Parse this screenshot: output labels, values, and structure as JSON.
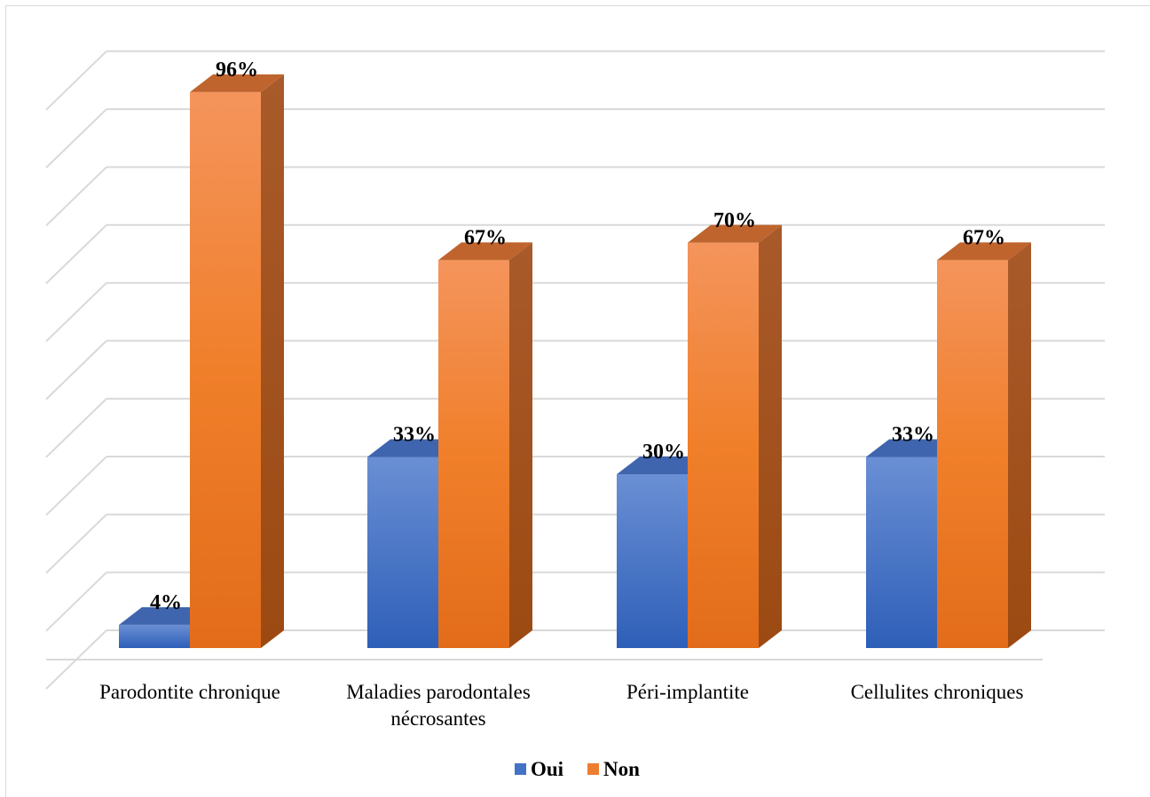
{
  "chart_data": {
    "type": "bar",
    "variant": "3d-clustered",
    "categories": [
      [
        "Parodontite chronique"
      ],
      [
        "Maladies parodontales",
        "nécrosantes"
      ],
      [
        "Péri-implantite"
      ],
      [
        "Cellulites chroniques"
      ]
    ],
    "series": [
      {
        "name": "Oui",
        "values": [
          4,
          33,
          30,
          33
        ],
        "labels": [
          "4%",
          "33%",
          "30%",
          "33%"
        ],
        "color": "#4472C4"
      },
      {
        "name": "Non",
        "values": [
          96,
          67,
          70,
          67
        ],
        "labels": [
          "96%",
          "67%",
          "70%",
          "67%"
        ],
        "color": "#ED7D31"
      }
    ],
    "ylim": [
      0,
      100
    ],
    "unit": "%",
    "grid": true,
    "legend_position": "bottom"
  }
}
